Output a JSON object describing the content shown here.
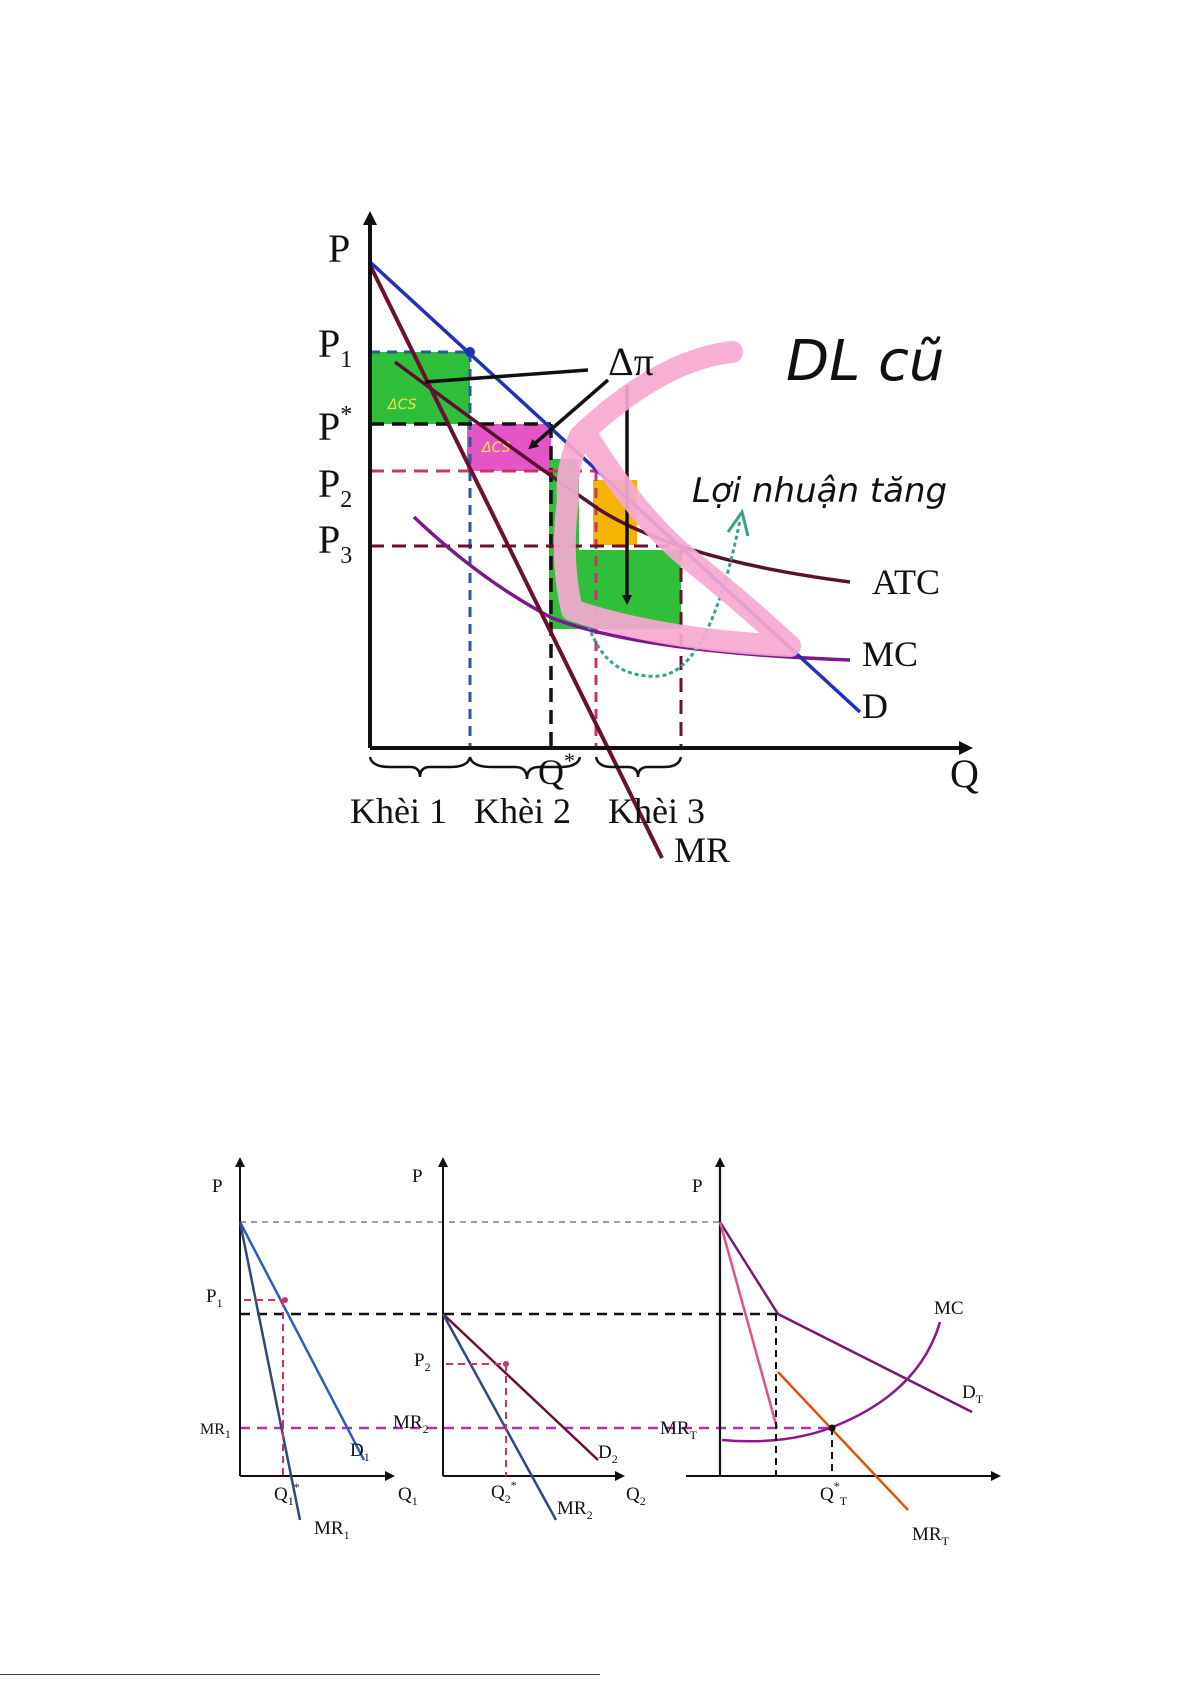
{
  "top_diagram": {
    "axis_y": "P",
    "axis_x": "Q",
    "p1_main": "P",
    "p1_sub": "1",
    "pstar_main": "P",
    "pstar_sup": "*",
    "p2_main": "P",
    "p2_sub": "2",
    "p3_main": "P",
    "p3_sub": "3",
    "delta_pi": "Δπ",
    "atc": "ATC",
    "mc": "MC",
    "d": "D",
    "mr": "MR",
    "qstar_main": "Q",
    "qstar_sup": "*",
    "block1": "Khèi 1",
    "block2": "Khèi 2",
    "block3": "Khèi 3",
    "acs": "ΔCS",
    "acs2": "ΔCS",
    "note_dl": "DL cũ",
    "note_profit": "Lợi nhuận tăng"
  },
  "bottom_diagram": {
    "panel1": {
      "p": "P",
      "p1_main": "P",
      "p1_sub": "1",
      "mr1_main": "MR",
      "mr1_sub": "1",
      "d1_main": "D",
      "d1_sub": "1",
      "q1star_main": "Q",
      "q1star_sub": "1",
      "q1star_sup": "*",
      "q1_main": "Q",
      "q1_sub": "1",
      "mr1b_main": "MR",
      "mr1b_sub": "1"
    },
    "panel2": {
      "p": "P",
      "p2_main": "P",
      "p2_sub": "2",
      "mr2_main": "MR",
      "mr2_sub": "2",
      "d2_main": "D",
      "d2_sub": "2",
      "q2star_main": "Q",
      "q2star_sub": "2",
      "q2star_sup": "*",
      "q2_main": "Q",
      "q2_sub": "2",
      "mr2b_main": "MR",
      "mr2b_sub": "2"
    },
    "panel3": {
      "p": "P",
      "mc": "MC",
      "dt_main": "D",
      "dt_sub": "T",
      "mrt_main": "MR",
      "mrt_sub": "T",
      "qt_main": "Q",
      "qt_sup": "*",
      "qt_sub": "T",
      "mrtb_main": "MR",
      "mrtb_sub": "T"
    }
  },
  "colors": {
    "demand": "#1f2fbf",
    "mr": "#6b1030",
    "mc": "#7a1a8a",
    "atc": "#5a1030",
    "green": "#2fbf3a",
    "pink_box": "#e455c8",
    "orange": "#f5b400",
    "highlight": "#f7a8d0",
    "dashed_pink": "#d0306a",
    "dashed_blue": "#2a5a9a",
    "d1": "#2a5ec0",
    "mr1": "#304a78",
    "d2": "#6a1038",
    "mr2": "#2a4a80",
    "dt": "#7a1a6a",
    "mrt": "#e05010",
    "mc_b": "#8a1a8a",
    "pink_line": "#e0508a"
  }
}
